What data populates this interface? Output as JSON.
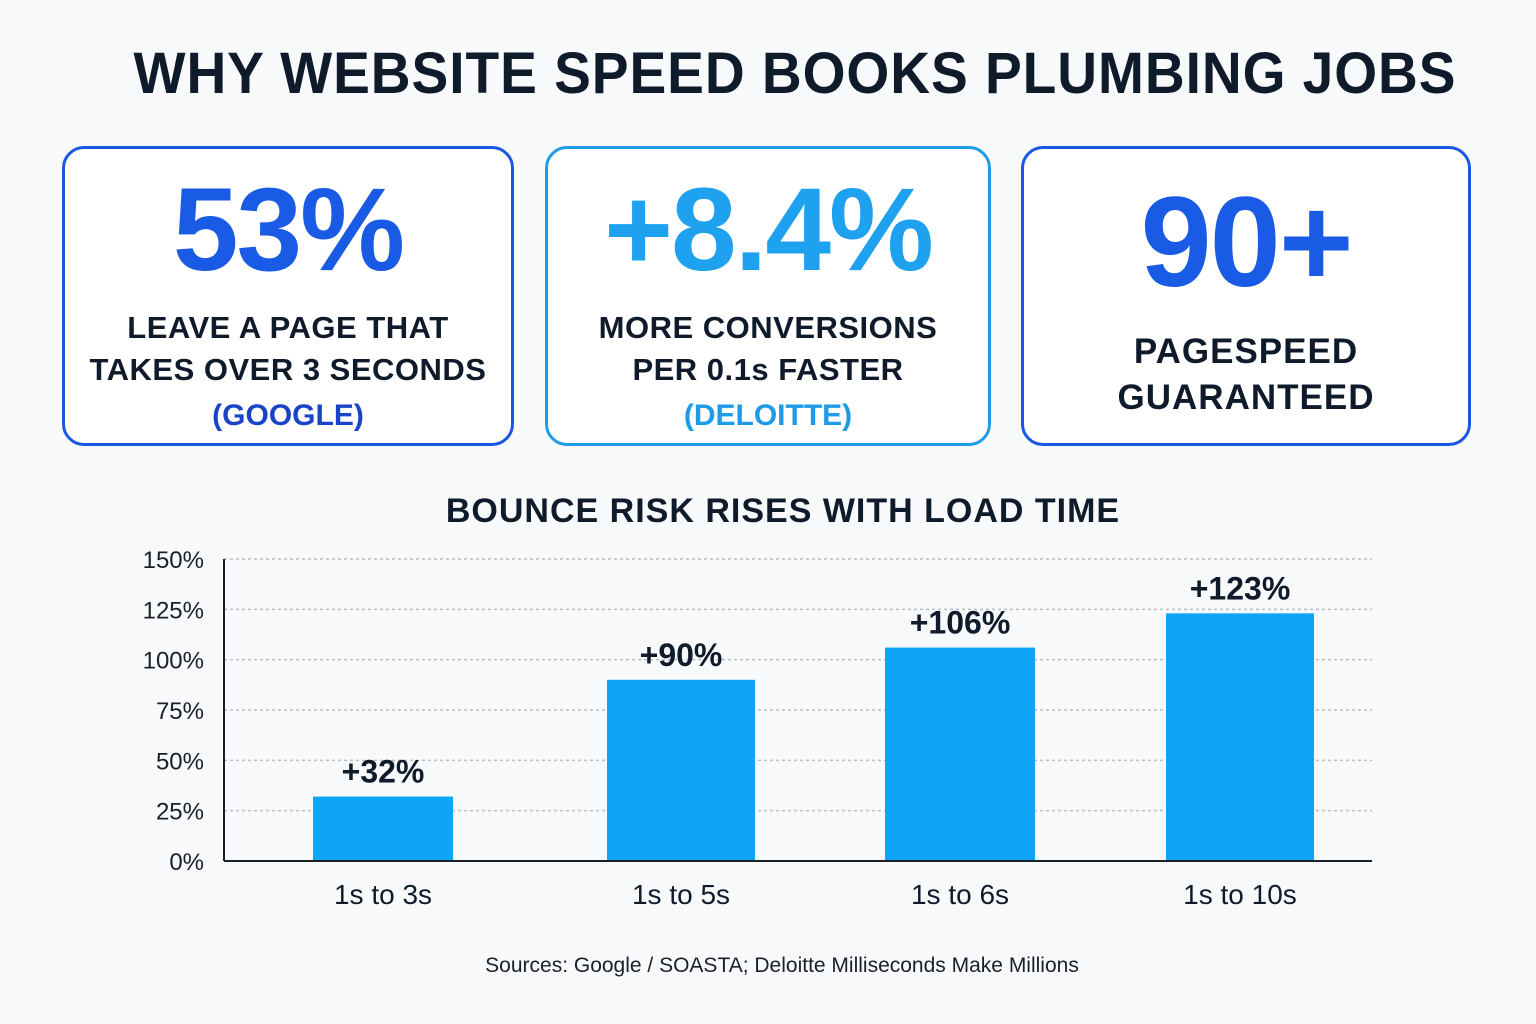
{
  "title": "WHY WEBSITE SPEED BOOKS PLUMBING JOBS",
  "stat_cards": [
    {
      "value": "53%",
      "line1": "LEAVE A PAGE THAT",
      "line2": "TAKES OVER 3 SECONDS",
      "source": "(GOOGLE)"
    },
    {
      "value": "+8.4%",
      "line1": "MORE CONVERSIONS",
      "line2": "PER 0.1s FASTER",
      "source": "(DELOITTE)"
    },
    {
      "value": "90+",
      "line1": "PAGESPEED",
      "line2": "GUARANTEED"
    }
  ],
  "chart_data": {
    "type": "bar",
    "title": "BOUNCE RISK RISES WITH LOAD TIME",
    "categories": [
      "1s to 3s",
      "1s to 5s",
      "1s to 6s",
      "1s to 10s"
    ],
    "values": [
      32,
      90,
      106,
      123
    ],
    "data_labels": [
      "+32%",
      "+90%",
      "+106%",
      "+123%"
    ],
    "ylim": [
      0,
      150
    ],
    "yticks": [
      0,
      25,
      50,
      75,
      100,
      125,
      150
    ],
    "ytick_labels": [
      "0%",
      "25%",
      "50%",
      "75%",
      "100%",
      "125%",
      "150%"
    ],
    "grid": true,
    "bar_color": "#0ea5f7"
  },
  "sources_note": "Sources: Google / SOASTA; Deloitte Milliseconds Make Millions"
}
